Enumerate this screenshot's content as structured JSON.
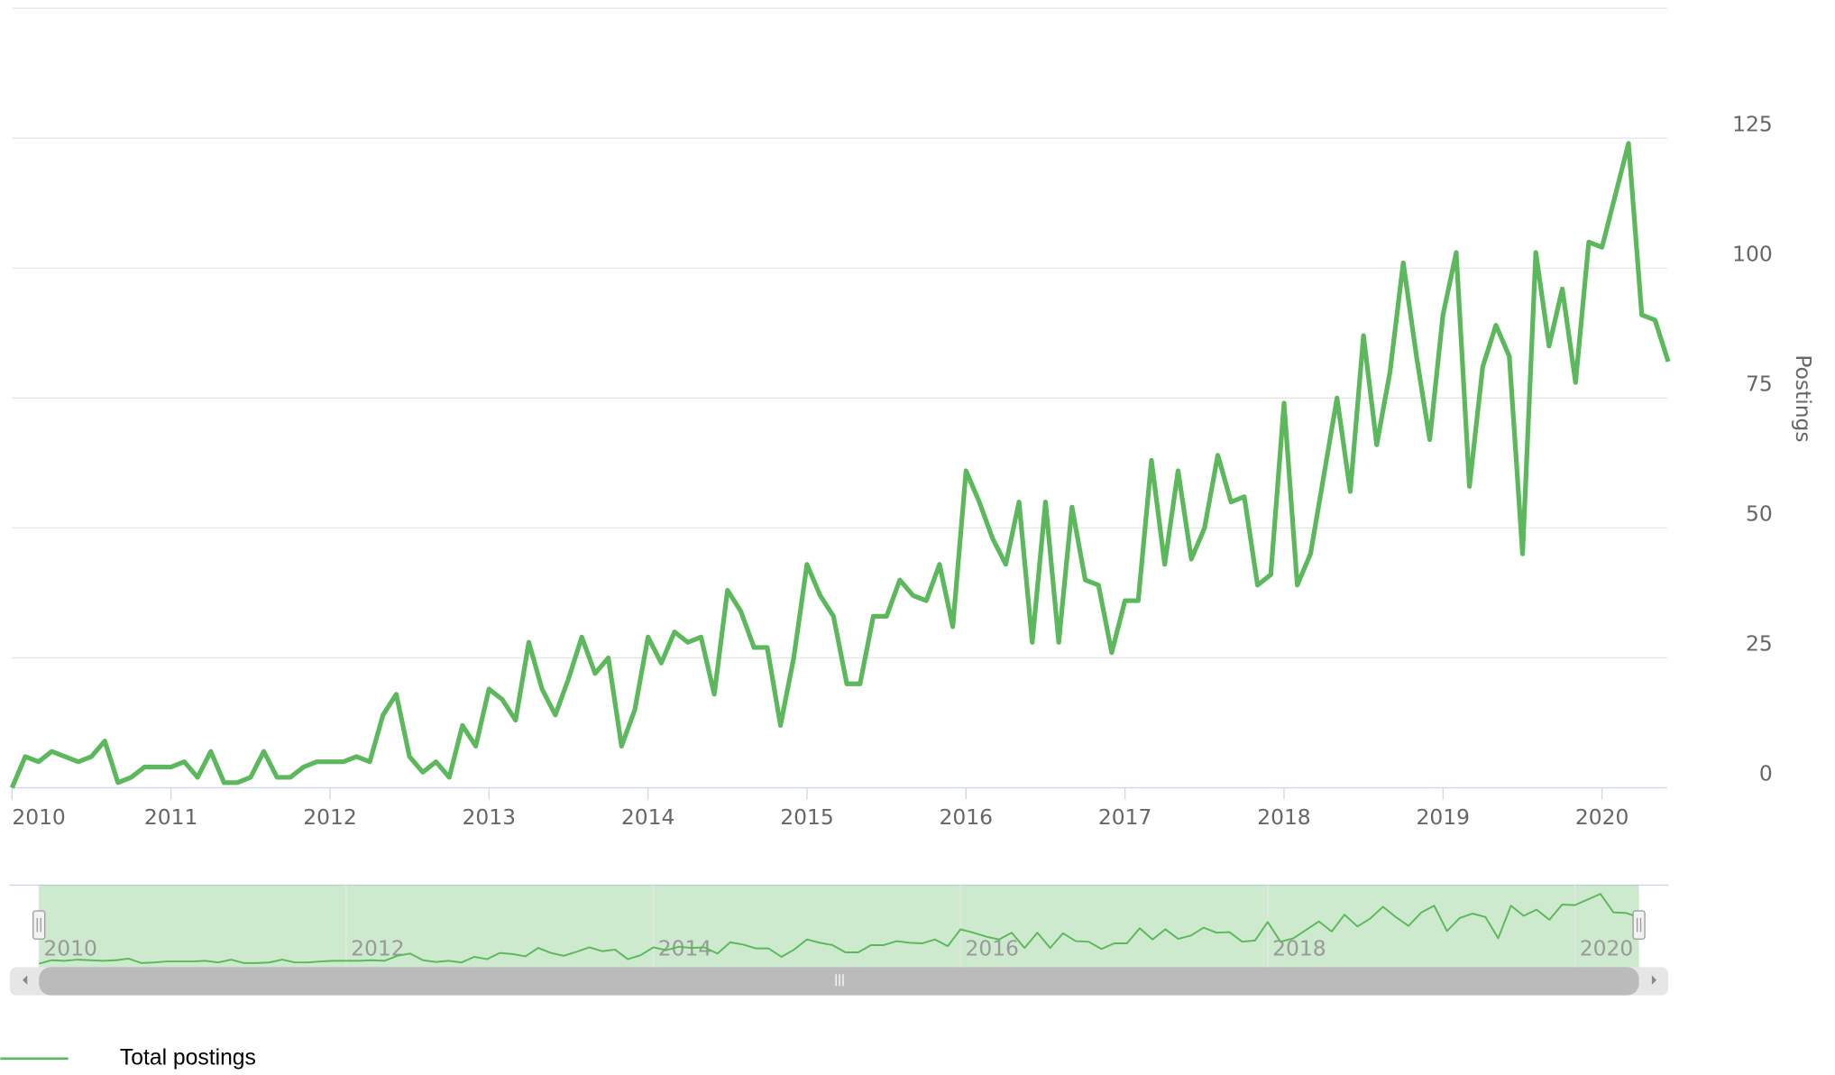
{
  "chart_data": {
    "type": "line",
    "y_axis_title": "Postings",
    "x": [
      "2010-01",
      "2010-02",
      "2010-03",
      "2010-04",
      "2010-05",
      "2010-06",
      "2010-07",
      "2010-08",
      "2010-09",
      "2010-10",
      "2010-11",
      "2010-12",
      "2011-01",
      "2011-02",
      "2011-03",
      "2011-04",
      "2011-05",
      "2011-06",
      "2011-07",
      "2011-08",
      "2011-09",
      "2011-10",
      "2011-11",
      "2011-12",
      "2012-01",
      "2012-02",
      "2012-03",
      "2012-04",
      "2012-05",
      "2012-06",
      "2012-07",
      "2012-08",
      "2012-09",
      "2012-10",
      "2012-11",
      "2012-12",
      "2013-01",
      "2013-02",
      "2013-03",
      "2013-04",
      "2013-05",
      "2013-06",
      "2013-07",
      "2013-08",
      "2013-09",
      "2013-10",
      "2013-11",
      "2013-12",
      "2014-01",
      "2014-02",
      "2014-03",
      "2014-04",
      "2014-05",
      "2014-06",
      "2014-07",
      "2014-08",
      "2014-09",
      "2014-10",
      "2014-11",
      "2014-12",
      "2015-01",
      "2015-02",
      "2015-03",
      "2015-04",
      "2015-05",
      "2015-06",
      "2015-07",
      "2015-08",
      "2015-09",
      "2015-10",
      "2015-11",
      "2015-12",
      "2016-01",
      "2016-02",
      "2016-03",
      "2016-04",
      "2016-05",
      "2016-06",
      "2016-07",
      "2016-08",
      "2016-09",
      "2016-10",
      "2016-11",
      "2016-12",
      "2017-01",
      "2017-02",
      "2017-03",
      "2017-04",
      "2017-05",
      "2017-06",
      "2017-07",
      "2017-08",
      "2017-09",
      "2017-10",
      "2017-11",
      "2017-12",
      "2018-01",
      "2018-02",
      "2018-03",
      "2018-04",
      "2018-05",
      "2018-06",
      "2018-07",
      "2018-08",
      "2018-09",
      "2018-10",
      "2018-11",
      "2018-12",
      "2019-01",
      "2019-02",
      "2019-03",
      "2019-04",
      "2019-05",
      "2019-06",
      "2019-07",
      "2019-08",
      "2019-09",
      "2019-10",
      "2019-11",
      "2019-12",
      "2020-01",
      "2020-02",
      "2020-03",
      "2020-04",
      "2020-05",
      "2020-06"
    ],
    "series": [
      {
        "name": "Total postings",
        "color": "#5cb85c",
        "values": [
          0,
          6,
          5,
          7,
          6,
          5,
          6,
          9,
          1,
          2,
          4,
          4,
          4,
          5,
          2,
          7,
          1,
          1,
          2,
          7,
          2,
          2,
          4,
          5,
          5,
          5,
          6,
          5,
          14,
          18,
          6,
          3,
          5,
          2,
          12,
          8,
          19,
          17,
          13,
          28,
          19,
          14,
          21,
          29,
          22,
          25,
          8,
          15,
          29,
          24,
          30,
          28,
          29,
          18,
          38,
          34,
          27,
          27,
          12,
          25,
          43,
          37,
          33,
          20,
          20,
          33,
          33,
          40,
          37,
          36,
          43,
          31,
          61,
          55,
          48,
          43,
          55,
          28,
          55,
          28,
          54,
          40,
          39,
          26,
          36,
          36,
          63,
          43,
          61,
          44,
          50,
          64,
          55,
          56,
          39,
          41,
          74,
          39,
          45,
          60,
          75,
          57,
          87,
          66,
          80,
          101,
          83,
          67,
          91,
          103,
          58,
          81,
          89,
          83,
          45,
          103,
          85,
          96,
          78,
          105,
          104,
          114,
          124,
          91,
          90,
          82
        ]
      }
    ],
    "xlim": [
      "2010-01",
      "2020-06"
    ],
    "xticks": [
      "2010",
      "2011",
      "2012",
      "2013",
      "2014",
      "2015",
      "2016",
      "2017",
      "2018",
      "2019",
      "2020"
    ],
    "ylim": [
      0,
      150
    ],
    "yticks": [
      0,
      25,
      50,
      75,
      100,
      125
    ],
    "grid": true,
    "legend": "bottom-left",
    "navigator": {
      "xticks": [
        "2010",
        "2012",
        "2014",
        "2016",
        "2018",
        "2020"
      ]
    }
  }
}
